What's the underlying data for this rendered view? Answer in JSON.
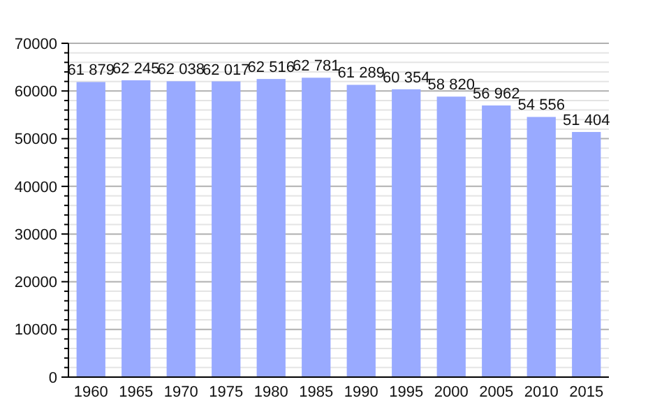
{
  "chart_data": {
    "type": "bar",
    "categories": [
      "1960",
      "1965",
      "1970",
      "1975",
      "1980",
      "1985",
      "1990",
      "1995",
      "2000",
      "2005",
      "2010",
      "2015"
    ],
    "values": [
      61879,
      62245,
      62038,
      62017,
      62516,
      62781,
      61289,
      60354,
      58820,
      56962,
      54556,
      51404
    ],
    "value_labels": [
      "61 879",
      "62 245",
      "62 038",
      "62 017",
      "62 516",
      "62 781",
      "61 289",
      "60 354",
      "58 820",
      "56 962",
      "54 556",
      "51 404"
    ],
    "color": "#99aaff",
    "ylim": [
      0,
      70000
    ],
    "yticks": [
      0,
      {
        "value": 2000,
        "label": null
      },
      {
        "value": 4000,
        "label": null
      },
      {
        "value": 6000,
        "label": null
      },
      {
        "value": 8000,
        "label": null
      },
      10000,
      {
        "value": 12000,
        "label": null
      },
      {
        "value": 14000,
        "label": null
      },
      {
        "value": 16000,
        "label": null
      },
      {
        "value": 18000,
        "label": null
      },
      20000,
      {
        "value": 22000,
        "label": null
      },
      {
        "value": 24000,
        "label": null
      },
      {
        "value": 26000,
        "label": null
      },
      {
        "value": 28000,
        "label": null
      },
      30000,
      {
        "value": 32000,
        "label": null
      },
      {
        "value": 34000,
        "label": null
      },
      {
        "value": 36000,
        "label": null
      },
      {
        "value": 38000,
        "label": null
      },
      40000,
      {
        "value": 42000,
        "label": null
      },
      {
        "value": 44000,
        "label": null
      },
      {
        "value": 46000,
        "label": null
      },
      {
        "value": 48000,
        "label": null
      },
      50000,
      {
        "value": 52000,
        "label": null
      },
      {
        "value": 54000,
        "label": null
      },
      {
        "value": 56000,
        "label": null
      },
      {
        "value": 58000,
        "label": null
      },
      60000,
      {
        "value": 62000,
        "label": null
      },
      {
        "value": 64000,
        "label": null
      },
      {
        "value": 66000,
        "label": null
      },
      {
        "value": 68000,
        "label": null
      },
      70000
    ],
    "grid": true
  }
}
